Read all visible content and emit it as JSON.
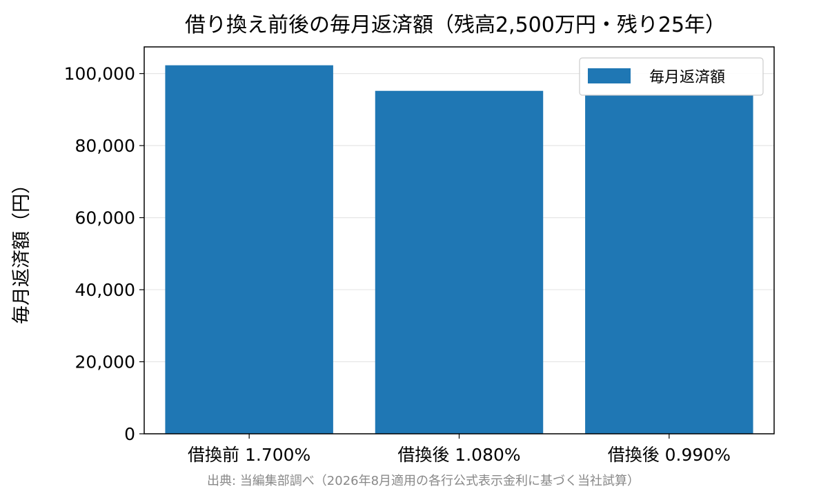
{
  "chart_data": {
    "type": "bar",
    "title": "借り換え前後の毎月返済額（残高2,500万円・残り25年）",
    "xlabel": "",
    "ylabel": "毎月返済額（円）",
    "categories": [
      "借換前 1.700%",
      "借換後 1.080%",
      "借換後 0.990%"
    ],
    "series": [
      {
        "name": "毎月返済額",
        "values": [
          102300,
          95200,
          94100
        ],
        "color": "#1f77b4"
      }
    ],
    "ylim": [
      0,
      107400
    ],
    "yticks": [
      0,
      20000,
      40000,
      60000,
      80000,
      100000
    ],
    "ytick_labels": [
      "0",
      "20,000",
      "40,000",
      "60,000",
      "80,000",
      "100,000"
    ],
    "grid": "y",
    "legend_position": "top-right"
  },
  "source_note": "出典: 当編集部調べ（2026年8月適用の各行公式表示金利に基づく当社試算）"
}
